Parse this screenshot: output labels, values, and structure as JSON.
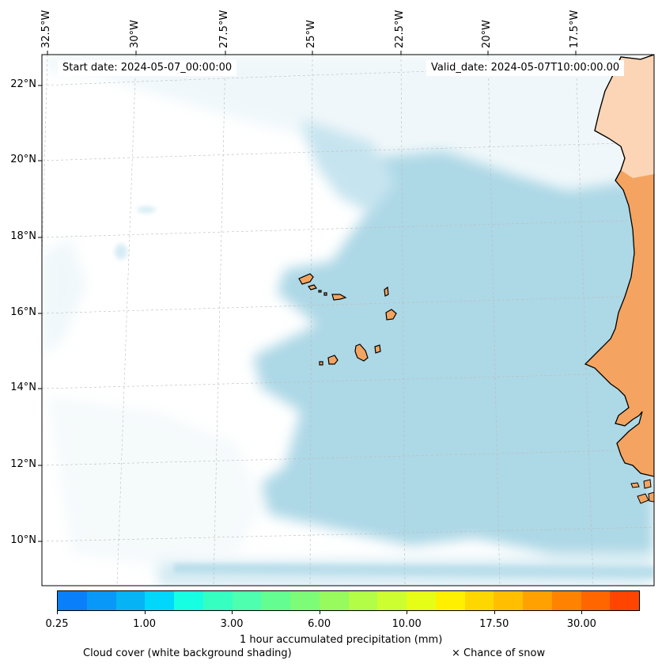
{
  "header": {
    "start_date": "Start date: 2024-05-07_00:00:00",
    "valid_date": "Valid_date: 2024-05-07T10:00:00.00"
  },
  "axes": {
    "lon_labels": [
      "32.5°W",
      "30°W",
      "27.5°W",
      "25°W",
      "22.5°W",
      "20°W",
      "17.5°W"
    ],
    "lat_labels": [
      "22°N",
      "20°N",
      "18°N",
      "16°N",
      "14°N",
      "12°N",
      "10°N"
    ],
    "gridlines": true
  },
  "colorbar": {
    "tick_labels": [
      "0.25",
      "1.00",
      "3.00",
      "6.00",
      "10.00",
      "17.50",
      "30.00"
    ],
    "label": "1 hour accumulated precipitation (mm)",
    "colors": [
      "#0a7ffa",
      "#0899f8",
      "#06b4f5",
      "#00d7fb",
      "#17ffe3",
      "#35ffc1",
      "#4dffae",
      "#63fd92",
      "#7dfc77",
      "#97fb5d",
      "#b3fd47",
      "#cdfe30",
      "#e6fe16",
      "#fff000",
      "#ffd700",
      "#ffbf00",
      "#ffa100",
      "#ff8300",
      "#ff6600",
      "#ff4500"
    ]
  },
  "legend": {
    "cloud_cover": "Cloud cover (white background shading)",
    "snow": "× Chance of snow"
  },
  "colors": {
    "land": "#f4a460",
    "land_north": "#fbd5b5",
    "cloud": "#add8e6"
  }
}
